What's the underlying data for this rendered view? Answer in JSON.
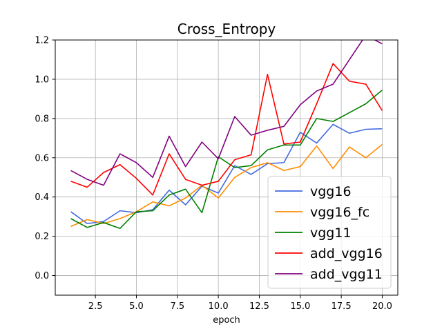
{
  "chart_data": {
    "type": "line",
    "title": "Cross_Entropy",
    "xlabel": "epoch",
    "ylabel": "",
    "xlim": [
      0.05,
      20.95
    ],
    "ylim": [
      -0.1,
      1.2
    ],
    "xticks": [
      2.5,
      5.0,
      7.5,
      10.0,
      12.5,
      15.0,
      17.5,
      20.0
    ],
    "xtick_labels": [
      "2.5",
      "5.0",
      "7.5",
      "10.0",
      "12.5",
      "15.0",
      "17.5",
      "20.0"
    ],
    "yticks": [
      0.0,
      0.2,
      0.4,
      0.6,
      0.8,
      1.0,
      1.2
    ],
    "ytick_labels": [
      "0.0",
      "0.2",
      "0.4",
      "0.6",
      "0.8",
      "1.0",
      "1.2"
    ],
    "grid": true,
    "legend_position": "lower-right",
    "x": [
      1,
      2,
      3,
      4,
      5,
      6,
      7,
      8,
      9,
      10,
      11,
      12,
      13,
      14,
      15,
      16,
      17,
      18,
      19,
      20
    ],
    "series": [
      {
        "name": "vgg16",
        "color": "#4169e1",
        "values": [
          0.325,
          0.265,
          0.275,
          0.33,
          0.32,
          0.335,
          0.435,
          0.36,
          0.455,
          0.42,
          0.56,
          0.515,
          0.57,
          0.575,
          0.73,
          0.675,
          0.77,
          0.725,
          0.745,
          0.748
        ]
      },
      {
        "name": "vgg16_fc",
        "color": "#ff8c00",
        "values": [
          0.25,
          0.285,
          0.265,
          0.29,
          0.325,
          0.375,
          0.355,
          0.395,
          0.46,
          0.395,
          0.5,
          0.55,
          0.575,
          0.535,
          0.555,
          0.66,
          0.545,
          0.655,
          0.6,
          0.668
        ]
      },
      {
        "name": "vgg11",
        "color": "#008000",
        "values": [
          0.29,
          0.245,
          0.27,
          0.24,
          0.325,
          0.33,
          0.41,
          0.44,
          0.32,
          0.605,
          0.55,
          0.56,
          0.64,
          0.665,
          0.665,
          0.8,
          0.785,
          0.83,
          0.875,
          0.945
        ]
      },
      {
        "name": "add_vgg16",
        "color": "#ff0000",
        "values": [
          0.48,
          0.45,
          0.525,
          0.565,
          0.495,
          0.41,
          0.62,
          0.49,
          0.46,
          0.48,
          0.59,
          0.615,
          1.025,
          0.67,
          0.68,
          0.875,
          1.08,
          0.99,
          0.975,
          0.84
        ]
      },
      {
        "name": "add_vgg11",
        "color": "#800080",
        "values": [
          0.535,
          0.49,
          0.46,
          0.62,
          0.575,
          0.5,
          0.71,
          0.555,
          0.68,
          0.595,
          0.81,
          0.715,
          0.74,
          0.76,
          0.87,
          0.94,
          0.975,
          1.1,
          1.225,
          1.18
        ]
      }
    ]
  }
}
